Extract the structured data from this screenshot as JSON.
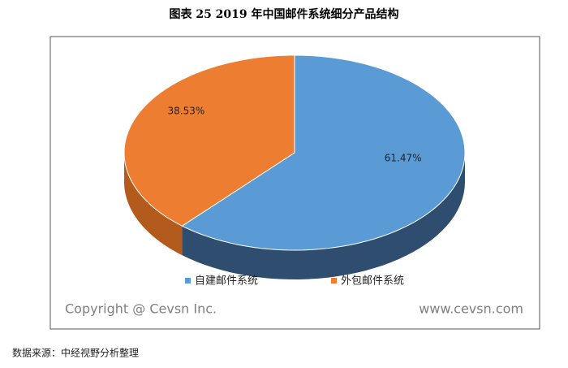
{
  "chart_data": {
    "type": "pie",
    "title": "图表 25  2019 年中国邮件系统细分产品结构",
    "categories": [
      "自建邮件系统",
      "外包邮件系统"
    ],
    "values": [
      61.47,
      38.53
    ],
    "value_labels": [
      "61.47%",
      "38.53%"
    ],
    "colors": [
      "#5b9bd5",
      "#ed7d31"
    ],
    "side_colors": [
      "#2f4d6e",
      "#b35a1d"
    ],
    "legend": "bottom"
  },
  "copyright": "Copyright @ Cevsn Inc.",
  "website": "www.cevsn.com",
  "source": "数据来源：中经视野分析整理"
}
